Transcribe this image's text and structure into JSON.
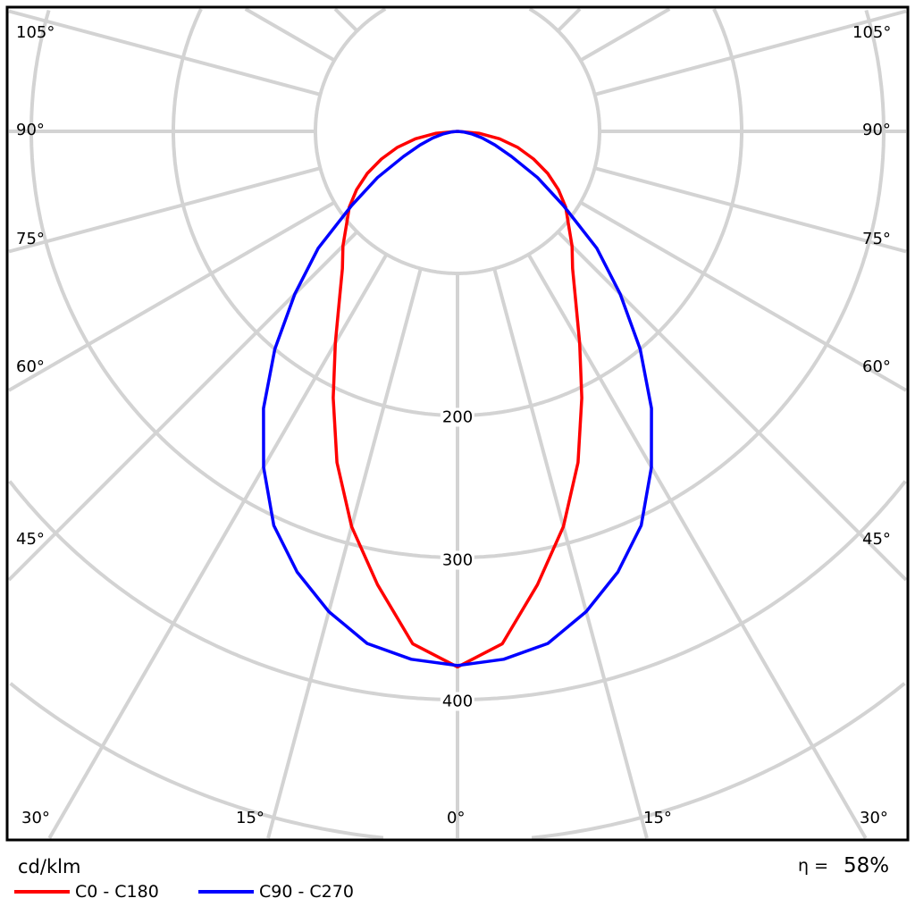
{
  "chart_data": {
    "type": "polar",
    "unit": "cd/klm",
    "radial_ticks": [
      200,
      300,
      400
    ],
    "rings": [
      100,
      200,
      300,
      400,
      500,
      600
    ],
    "radial_range": [
      0,
      600
    ],
    "angle_ticks": [
      "0°",
      "15°",
      "30°",
      "45°",
      "60°",
      "75°",
      "90°",
      "105°"
    ],
    "angle_step_deg": 15,
    "grid": true,
    "symmetric": true,
    "angles": [
      0,
      5,
      10,
      15,
      20,
      25,
      30,
      35,
      40,
      45,
      50,
      55,
      60,
      65,
      70,
      75,
      80,
      85,
      90
    ],
    "series": [
      {
        "name": "C0 - C180",
        "color": "#ff0000",
        "values": [
          377,
          362,
          324,
          288,
          248,
          207,
          172,
          145,
          126,
          114,
          102,
          93,
          82,
          70,
          57,
          44,
          30,
          15,
          0
        ]
      },
      {
        "name": "C90 - C270",
        "color": "#0000ff",
        "values": [
          376,
          373,
          366,
          350,
          330,
          306,
          273,
          238,
          200,
          162,
          128,
          91,
          65,
          42,
          28,
          18,
          10,
          4,
          0
        ]
      }
    ],
    "efficiency_label": "η =",
    "efficiency_value": "58%"
  }
}
